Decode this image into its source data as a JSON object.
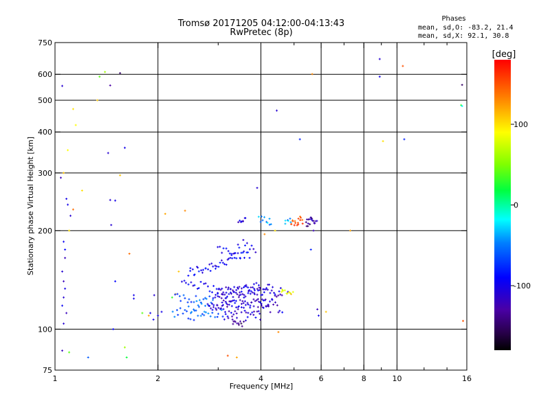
{
  "chart_data": {
    "type": "scatter",
    "title": "Tromsø 20171205 04:12:00-04:13:43",
    "subtitle": "RwPretec (8p)",
    "stats": {
      "heading": "Phases",
      "line_o": "mean, sd,O: -83.2, 21.4",
      "line_x": "mean, sd,X:  92.1, 30.8"
    },
    "xlabel": "Frequency [MHz]",
    "ylabel": "Stationary phase Virtual Height [km]",
    "x_scale": "log",
    "y_scale": "log",
    "xlim": [
      1,
      16
    ],
    "ylim": [
      75,
      750
    ],
    "grid": true,
    "x_ticks": [
      {
        "value": 1,
        "label": "1"
      },
      {
        "value": 2,
        "label": "2"
      },
      {
        "value": 4,
        "label": "4"
      },
      {
        "value": 6,
        "label": "6"
      },
      {
        "value": 8,
        "label": "8"
      },
      {
        "value": 10,
        "label": "10"
      },
      {
        "value": 16,
        "label": "16"
      }
    ],
    "x_grid": [
      2,
      4,
      6,
      8,
      10
    ],
    "x_minor": [
      3,
      5,
      7,
      9,
      12,
      14
    ],
    "y_ticks": [
      {
        "value": 75,
        "label": "75"
      },
      {
        "value": 100,
        "label": "100"
      },
      {
        "value": 200,
        "label": "200"
      },
      {
        "value": 300,
        "label": "300"
      },
      {
        "value": 400,
        "label": "400"
      },
      {
        "value": 500,
        "label": "500"
      },
      {
        "value": 600,
        "label": "600"
      },
      {
        "value": 750,
        "label": "750"
      }
    ],
    "y_grid": [
      100,
      200,
      300,
      400,
      500,
      600
    ],
    "colorbar": {
      "unit": "[deg]",
      "range": [
        -180,
        180
      ],
      "ticks": [
        {
          "value": 100,
          "label": "100"
        },
        {
          "value": 0,
          "label": "0"
        },
        {
          "value": -100,
          "label": "-100"
        }
      ]
    },
    "scatter_points": [
      [
        1.05,
        553,
        -110
      ],
      [
        1.04,
        290,
        -120
      ],
      [
        1.08,
        250,
        -100
      ],
      [
        1.06,
        185,
        -95
      ],
      [
        1.07,
        165,
        -120
      ],
      [
        1.05,
        150,
        -110
      ],
      [
        1.06,
        140,
        -120
      ],
      [
        1.07,
        133,
        -100
      ],
      [
        1.06,
        125,
        -110
      ],
      [
        1.05,
        118,
        -95
      ],
      [
        1.08,
        112,
        -120
      ],
      [
        1.06,
        104,
        -110
      ],
      [
        1.05,
        86,
        -120
      ],
      [
        1.1,
        85,
        40
      ],
      [
        1.07,
        175,
        -90
      ],
      [
        1.06,
        300,
        110
      ],
      [
        1.09,
        352,
        90
      ],
      [
        1.13,
        470,
        100
      ],
      [
        1.15,
        420,
        90
      ],
      [
        1.2,
        265,
        100
      ],
      [
        1.13,
        232,
        140
      ],
      [
        1.11,
        222,
        -110
      ],
      [
        1.09,
        240,
        -100
      ],
      [
        1.1,
        200,
        100
      ],
      [
        1.25,
        82,
        -60
      ],
      [
        1.35,
        590,
        40
      ],
      [
        1.4,
        610,
        60
      ],
      [
        1.33,
        500,
        110
      ],
      [
        1.45,
        555,
        -130
      ],
      [
        1.55,
        605,
        -150
      ],
      [
        1.43,
        345,
        -110
      ],
      [
        1.6,
        358,
        -100
      ],
      [
        1.45,
        248,
        -110
      ],
      [
        1.5,
        247,
        -100
      ],
      [
        1.46,
        208,
        -110
      ],
      [
        1.55,
        295,
        110
      ],
      [
        1.5,
        140,
        -90
      ],
      [
        1.48,
        100,
        -90
      ],
      [
        1.6,
        88,
        60
      ],
      [
        1.62,
        82,
        20
      ],
      [
        1.65,
        170,
        140
      ],
      [
        1.7,
        127,
        -100
      ],
      [
        1.8,
        112,
        40
      ],
      [
        1.88,
        110,
        120
      ],
      [
        1.9,
        112,
        -100
      ],
      [
        1.94,
        107,
        -100
      ],
      [
        2.1,
        225,
        120
      ],
      [
        2.4,
        230,
        130
      ],
      [
        1.95,
        127,
        -110
      ],
      [
        2.0,
        110,
        -100
      ],
      [
        2.05,
        113,
        -100
      ],
      [
        2.3,
        150,
        110
      ],
      [
        2.2,
        125,
        30
      ],
      [
        2.25,
        128,
        110
      ],
      [
        1.7,
        124,
        -100
      ],
      [
        5.6,
        175,
        -80
      ],
      [
        5.9,
        110,
        -100
      ],
      [
        5.85,
        115,
        -120
      ],
      [
        5.7,
        200,
        -120
      ],
      [
        5.2,
        380,
        -80
      ],
      [
        4.45,
        465,
        -110
      ],
      [
        3.9,
        270,
        -110
      ],
      [
        7.3,
        200,
        120
      ],
      [
        8.9,
        668,
        -110
      ],
      [
        8.9,
        590,
        -100
      ],
      [
        10.4,
        636,
        150
      ],
      [
        9.1,
        375,
        100
      ],
      [
        10.5,
        380,
        -80
      ],
      [
        15.5,
        557,
        -150
      ],
      [
        15.4,
        483,
        30
      ],
      [
        15.5,
        480,
        -20
      ],
      [
        15.6,
        106,
        150
      ],
      [
        5.65,
        601,
        130
      ],
      [
        3.4,
        82,
        120
      ],
      [
        3.2,
        83,
        150
      ],
      [
        4.6,
        130,
        90
      ],
      [
        4.4,
        200,
        100
      ],
      [
        4.1,
        195,
        130
      ],
      [
        4.5,
        98,
        130
      ],
      [
        6.2,
        113,
        110
      ],
      [
        4.8,
        130,
        -110
      ],
      [
        4.9,
        128,
        120
      ]
    ],
    "scatter_traces": [
      {
        "from": [
          2.45,
          148
        ],
        "to": [
          3.7,
          170
        ],
        "n": 45,
        "jitter": 0.04,
        "phase": -95
      },
      {
        "from": [
          3.0,
          175
        ],
        "to": [
          3.85,
          180
        ],
        "n": 20,
        "jitter": 0.05,
        "phase": -100
      },
      {
        "from": [
          2.35,
          140
        ],
        "to": [
          3.0,
          132
        ],
        "n": 18,
        "jitter": 0.03,
        "phase": -100
      },
      {
        "from": [
          3.0,
          130
        ],
        "to": [
          4.0,
          136
        ],
        "n": 40,
        "jitter": 0.03,
        "phase": -110
      },
      {
        "from": [
          2.25,
          125
        ],
        "to": [
          2.9,
          123
        ],
        "n": 20,
        "jitter": 0.03,
        "phase": -60
      },
      {
        "from": [
          2.9,
          125
        ],
        "to": [
          4.1,
          130
        ],
        "n": 40,
        "jitter": 0.025,
        "phase": -105
      },
      {
        "from": [
          2.2,
          112
        ],
        "to": [
          2.8,
          117
        ],
        "n": 18,
        "jitter": 0.03,
        "phase": -60
      },
      {
        "from": [
          2.8,
          116
        ],
        "to": [
          3.3,
          121
        ],
        "n": 28,
        "jitter": 0.03,
        "phase": -115
      },
      {
        "from": [
          3.3,
          120
        ],
        "to": [
          4.3,
          121
        ],
        "n": 35,
        "jitter": 0.03,
        "phase": -105
      },
      {
        "from": [
          2.45,
          110
        ],
        "to": [
          3.1,
          112
        ],
        "n": 18,
        "jitter": 0.04,
        "phase": -60
      },
      {
        "from": [
          3.1,
          110
        ],
        "to": [
          4.0,
          112
        ],
        "n": 35,
        "jitter": 0.05,
        "phase": -110
      },
      {
        "from": [
          3.3,
          105
        ],
        "to": [
          3.55,
          104
        ],
        "n": 10,
        "jitter": 0.02,
        "phase": -140
      },
      {
        "from": [
          4.1,
          132
        ],
        "to": [
          4.6,
          128
        ],
        "n": 18,
        "jitter": 0.05,
        "phase": -110
      },
      {
        "from": [
          4.0,
          120
        ],
        "to": [
          4.6,
          115
        ],
        "n": 14,
        "jitter": 0.05,
        "phase": -110
      },
      {
        "from": [
          4.6,
          130
        ],
        "to": [
          4.95,
          128
        ],
        "n": 8,
        "jitter": 0.02,
        "phase": 80
      },
      {
        "from": [
          3.45,
          213
        ],
        "to": [
          3.6,
          215
        ],
        "n": 8,
        "jitter": 0.02,
        "phase": -110
      },
      {
        "from": [
          3.95,
          215
        ],
        "to": [
          4.3,
          214
        ],
        "n": 10,
        "jitter": 0.03,
        "phase": -40
      },
      {
        "from": [
          4.7,
          213
        ],
        "to": [
          4.9,
          216
        ],
        "n": 6,
        "jitter": 0.02,
        "phase": -40
      },
      {
        "from": [
          4.9,
          212
        ],
        "to": [
          5.3,
          216
        ],
        "n": 16,
        "jitter": 0.03,
        "phase": 150
      },
      {
        "from": [
          5.4,
          210
        ],
        "to": [
          5.75,
          217
        ],
        "n": 14,
        "jitter": 0.03,
        "phase": -130
      },
      {
        "from": [
          5.6,
          215
        ],
        "to": [
          5.85,
          215
        ],
        "n": 5,
        "jitter": 0.02,
        "phase": -110
      }
    ]
  }
}
